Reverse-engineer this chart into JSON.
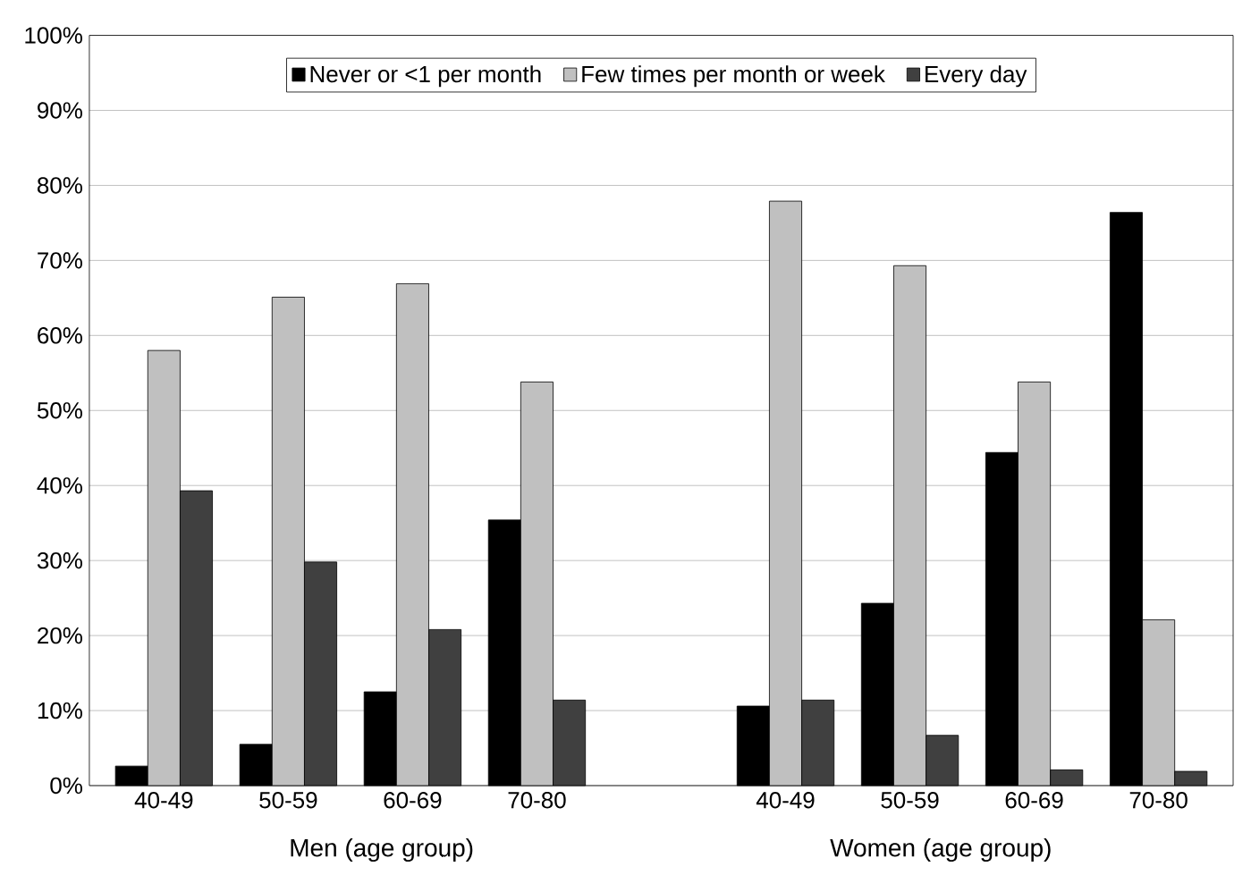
{
  "chart_data": {
    "type": "bar",
    "categories": [
      "40-49",
      "50-59",
      "60-69",
      "70-80",
      null,
      "40-49",
      "50-59",
      "60-69",
      "70-80"
    ],
    "series": [
      {
        "name": "Never or <1 per month",
        "color": "#000000",
        "values": [
          2.6,
          5.5,
          12.5,
          35.4,
          null,
          10.6,
          24.3,
          44.4,
          76.4
        ]
      },
      {
        "name": "Few times per month or week",
        "color": "#c0c0c0",
        "values": [
          58,
          65.1,
          66.9,
          53.8,
          null,
          77.9,
          69.3,
          53.8,
          22.1
        ]
      },
      {
        "name": "Every day",
        "color": "#404040",
        "values": [
          39.3,
          29.8,
          20.8,
          11.4,
          null,
          11.4,
          6.7,
          2.1,
          1.9
        ]
      }
    ],
    "ylim": [
      0,
      100
    ],
    "yticks": [
      {
        "value": 0,
        "label": "0%"
      },
      {
        "value": 10,
        "label": "10%"
      },
      {
        "value": 20,
        "label": "20%"
      },
      {
        "value": 30,
        "label": "30%"
      },
      {
        "value": 40,
        "label": "40%"
      },
      {
        "value": 50,
        "label": "50%"
      },
      {
        "value": 60,
        "label": "60%"
      },
      {
        "value": 70,
        "label": "70%"
      },
      {
        "value": 80,
        "label": "80%"
      },
      {
        "value": 90,
        "label": "90%"
      },
      {
        "value": 100,
        "label": "100%"
      }
    ],
    "grid": "y",
    "legend": "top",
    "annotations": [
      "Men (age group)",
      "Women (age group)"
    ]
  }
}
